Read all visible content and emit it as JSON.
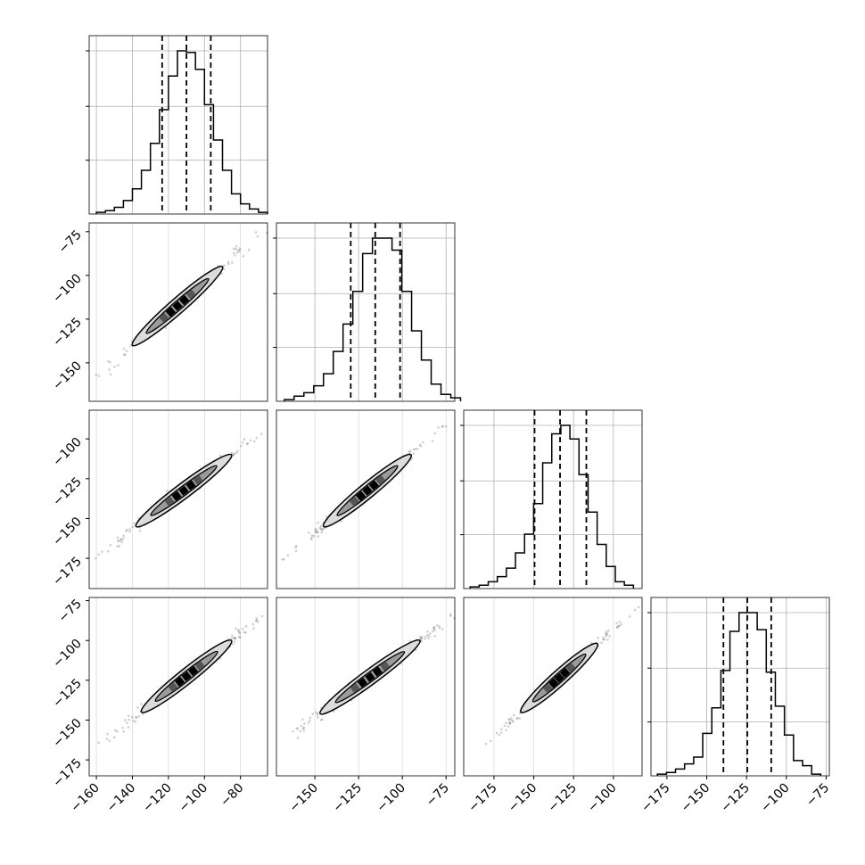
{
  "chart_data": {
    "type": "corner",
    "description_free": true,
    "n_params": 4,
    "grid": true,
    "colors": {
      "line": "#000000",
      "grid": "#b0b0b0",
      "scatter": "#555555"
    },
    "ticks": [
      {
        "values": [
          -160,
          -140,
          -120,
          -100,
          -80
        ],
        "labels": [
          "−160",
          "−140",
          "−120",
          "−100",
          "−80"
        ]
      },
      {
        "values": [
          -150,
          -125,
          -100,
          -75
        ],
        "labels": [
          "−150",
          "−125",
          "−100",
          "−75"
        ]
      },
      {
        "values": [
          -175,
          -150,
          -125,
          -100
        ],
        "labels": [
          "−175",
          "−150",
          "−125",
          "−100"
        ]
      },
      {
        "values": [
          -175,
          -150,
          -125,
          -100,
          -75
        ],
        "labels": [
          "−175",
          "−150",
          "−125",
          "−100",
          "−75"
        ]
      }
    ],
    "y_ticks": [
      null,
      {
        "values": [
          -75,
          -100,
          -125,
          -150
        ],
        "labels": [
          "−75",
          "−100",
          "−125",
          "−150"
        ]
      },
      {
        "values": [
          -100,
          -125,
          -150,
          -175
        ],
        "labels": [
          "−100",
          "−125",
          "−150",
          "−175"
        ]
      },
      {
        "values": [
          -75,
          -100,
          -125,
          -150,
          -175
        ],
        "labels": [
          "−75",
          "−100",
          "−125",
          "−150",
          "−175"
        ]
      }
    ],
    "ranges": [
      [
        -164,
        -65
      ],
      [
        -172,
        -70
      ],
      [
        -194,
        -82
      ],
      [
        -185,
        -73
      ]
    ],
    "histograms": [
      {
        "edges_start": -160,
        "bin_width": 5,
        "counts": [
          1,
          2,
          4,
          8,
          15,
          26,
          42,
          62,
          82,
          97,
          96,
          86,
          65,
          44,
          26,
          12,
          6,
          3,
          1
        ],
        "quantiles": [
          -123.5,
          -110,
          -96.5
        ]
      },
      {
        "edges_start": -167.5,
        "bin_width": 5.6,
        "counts": [
          1,
          3,
          5,
          9,
          16,
          29,
          45,
          64,
          86,
          95,
          95,
          88,
          64,
          41,
          24,
          10,
          4,
          2
        ],
        "quantiles": [
          -129.5,
          -115.5,
          -101.3
        ]
      },
      {
        "edges_start": -190,
        "bin_width": 5.7,
        "counts": [
          1,
          2,
          4,
          7,
          12,
          21,
          32,
          50,
          74,
          91,
          96,
          88,
          67,
          45,
          26,
          13,
          4,
          2
        ],
        "quantiles": [
          -149.5,
          -133.5,
          -117
        ]
      },
      {
        "edges_start": -181,
        "bin_width": 5.7,
        "counts": [
          1,
          2,
          4,
          7,
          11,
          25,
          40,
          62,
          85,
          96,
          96,
          86,
          61,
          41,
          24,
          9,
          6,
          1
        ],
        "quantiles": [
          -139.5,
          -124.5,
          -109.5
        ]
      }
    ],
    "correlations": [
      {
        "x": 0,
        "y": 1,
        "x_range": [
          -140,
          -90
        ],
        "y_range": [
          -140,
          -95
        ]
      },
      {
        "x": 0,
        "y": 2,
        "x_range": [
          -138,
          -85
        ],
        "y_range": [
          -155,
          -110
        ]
      },
      {
        "x": 1,
        "y": 2,
        "x_range": [
          -145,
          -95
        ],
        "y_range": [
          -155,
          -110
        ]
      },
      {
        "x": 0,
        "y": 3,
        "x_range": [
          -135,
          -85
        ],
        "y_range": [
          -145,
          -100
        ]
      },
      {
        "x": 1,
        "y": 3,
        "x_range": [
          -147,
          -90
        ],
        "y_range": [
          -146,
          -100
        ]
      },
      {
        "x": 2,
        "y": 3,
        "x_range": [
          -158,
          -110
        ],
        "y_range": [
          -145,
          -102
        ]
      }
    ]
  }
}
